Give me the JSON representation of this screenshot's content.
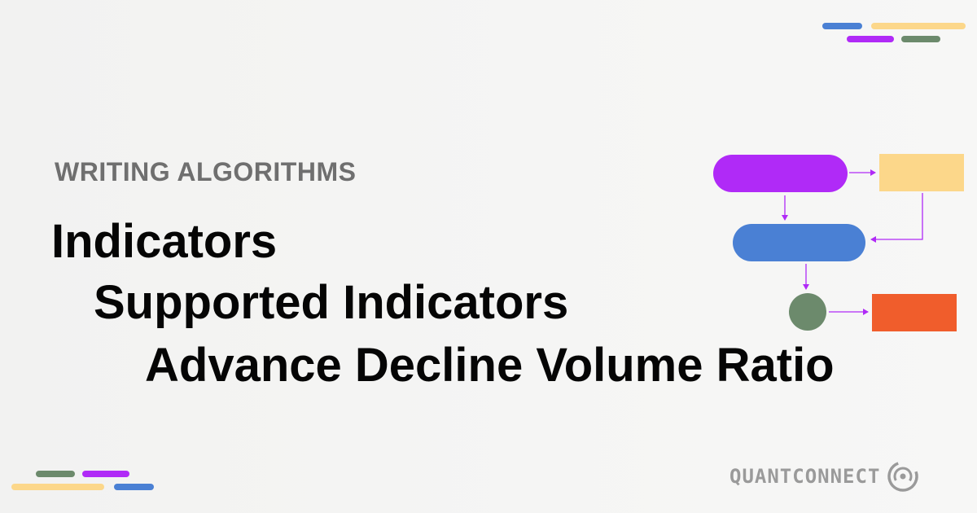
{
  "header": {
    "eyebrow": "WRITING ALGORITHMS"
  },
  "titles": {
    "line1": "Indicators",
    "line2": "Supported Indicators",
    "line3": "Advance Decline Volume Ratio"
  },
  "brand": {
    "name": "QUANTCONNECT",
    "logo_icon": "quantconnect-logo-icon"
  },
  "colors": {
    "purple": "#b02af7",
    "yellow": "#fcd78a",
    "blue": "#4a80d4",
    "green": "#6c8a6c",
    "orange": "#f05d2c",
    "text_dark": "#050505",
    "text_gray": "#6f6f6f"
  }
}
